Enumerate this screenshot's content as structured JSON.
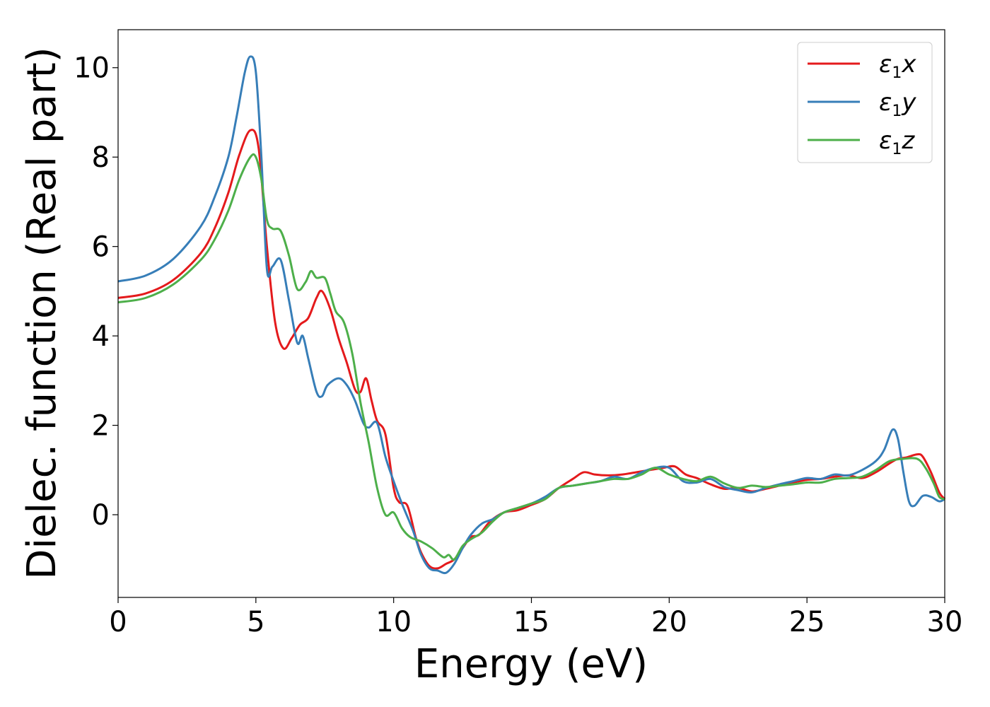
{
  "chart_data": {
    "type": "line",
    "xlabel": "Energy (eV)",
    "ylabel": "Dielec. function (Real part)",
    "xlim": [
      0,
      30
    ],
    "ylim": [
      -1.85,
      10.85
    ],
    "xticks": [
      0,
      5,
      10,
      15,
      20,
      25,
      30
    ],
    "yticks": [
      0,
      2,
      4,
      6,
      8,
      10
    ],
    "grid": false,
    "legend_position": "top-right",
    "series": [
      {
        "name": "ε1x",
        "legend_symbol": "ε",
        "legend_subscript": "1",
        "legend_suffix": "x",
        "color": "#e41a1c",
        "x": [
          0,
          1,
          2,
          3,
          3.5,
          4,
          4.4,
          4.8,
          5.1,
          5.4,
          5.7,
          6.0,
          6.3,
          6.6,
          6.9,
          7.2,
          7.4,
          7.7,
          8.0,
          8.3,
          8.6,
          8.8,
          9.0,
          9.2,
          9.4,
          9.7,
          10.0,
          10.2,
          10.5,
          10.8,
          11.0,
          11.3,
          11.6,
          11.9,
          12.2,
          12.5,
          12.8,
          13.1,
          13.5,
          14.0,
          14.5,
          15.0,
          15.5,
          16.0,
          16.5,
          16.9,
          17.3,
          17.8,
          18.3,
          18.8,
          19.3,
          19.8,
          20.2,
          20.6,
          21.0,
          21.5,
          22.0,
          22.5,
          23.0,
          23.5,
          24.0,
          24.5,
          25.0,
          25.5,
          26.0,
          26.5,
          27.0,
          27.5,
          28.0,
          28.3,
          28.6,
          29.0,
          29.2,
          29.5,
          29.8,
          30.0
        ],
        "y": [
          4.85,
          4.95,
          5.25,
          5.85,
          6.4,
          7.2,
          8.05,
          8.6,
          8.2,
          6.0,
          4.3,
          3.72,
          3.95,
          4.25,
          4.4,
          4.85,
          5.0,
          4.6,
          3.95,
          3.4,
          2.8,
          2.75,
          3.05,
          2.55,
          2.1,
          1.8,
          0.6,
          0.28,
          0.2,
          -0.5,
          -0.85,
          -1.15,
          -1.2,
          -1.1,
          -1.0,
          -0.75,
          -0.5,
          -0.45,
          -0.15,
          0.05,
          0.1,
          0.22,
          0.35,
          0.6,
          0.8,
          0.95,
          0.9,
          0.88,
          0.9,
          0.95,
          1.0,
          1.05,
          1.08,
          0.9,
          0.82,
          0.68,
          0.58,
          0.6,
          0.52,
          0.58,
          0.65,
          0.72,
          0.78,
          0.8,
          0.85,
          0.88,
          0.82,
          0.95,
          1.15,
          1.25,
          1.28,
          1.35,
          1.3,
          0.95,
          0.5,
          0.35
        ]
      },
      {
        "name": "ε1y",
        "legend_symbol": "ε",
        "legend_subscript": "1",
        "legend_suffix": "y",
        "color": "#377eb8",
        "x": [
          0,
          1,
          2,
          3,
          3.5,
          4,
          4.3,
          4.6,
          4.8,
          5.0,
          5.2,
          5.4,
          5.6,
          5.9,
          6.2,
          6.5,
          6.7,
          6.9,
          7.2,
          7.4,
          7.6,
          8.0,
          8.3,
          8.6,
          8.9,
          9.1,
          9.4,
          9.7,
          10.0,
          10.3,
          10.7,
          11.0,
          11.3,
          11.6,
          11.9,
          12.2,
          12.5,
          12.8,
          13.2,
          13.6,
          14.0,
          14.5,
          15.0,
          15.5,
          16.0,
          16.5,
          17.0,
          17.5,
          18.0,
          18.5,
          19.0,
          19.5,
          20.0,
          20.5,
          21.0,
          21.5,
          22.0,
          22.5,
          23.0,
          23.5,
          24.0,
          24.5,
          25.0,
          25.5,
          26.0,
          26.5,
          27.0,
          27.5,
          27.8,
          28.1,
          28.3,
          28.5,
          28.7,
          28.9,
          29.2,
          29.5,
          29.8,
          30.0
        ],
        "y": [
          5.22,
          5.35,
          5.72,
          6.45,
          7.1,
          8.0,
          8.9,
          9.9,
          10.25,
          9.9,
          8.0,
          5.5,
          5.55,
          5.7,
          4.8,
          3.85,
          4.0,
          3.5,
          2.75,
          2.65,
          2.9,
          3.05,
          2.9,
          2.55,
          2.05,
          1.95,
          2.05,
          1.3,
          0.75,
          0.25,
          -0.35,
          -0.9,
          -1.2,
          -1.25,
          -1.3,
          -1.1,
          -0.75,
          -0.45,
          -0.2,
          -0.1,
          0.05,
          0.15,
          0.25,
          0.4,
          0.6,
          0.65,
          0.7,
          0.75,
          0.85,
          0.8,
          0.95,
          1.05,
          1.05,
          0.75,
          0.72,
          0.8,
          0.62,
          0.55,
          0.5,
          0.6,
          0.68,
          0.75,
          0.82,
          0.8,
          0.9,
          0.88,
          1.0,
          1.2,
          1.45,
          1.9,
          1.7,
          0.95,
          0.3,
          0.2,
          0.42,
          0.4,
          0.3,
          0.35
        ]
      },
      {
        "name": "ε1z",
        "legend_symbol": "ε",
        "legend_subscript": "1",
        "legend_suffix": "z",
        "color": "#4daf4a",
        "x": [
          0,
          1,
          2,
          3,
          3.5,
          4,
          4.4,
          4.8,
          5.0,
          5.2,
          5.4,
          5.6,
          5.9,
          6.2,
          6.5,
          6.8,
          7.0,
          7.2,
          7.5,
          7.7,
          7.9,
          8.2,
          8.5,
          8.8,
          9.1,
          9.4,
          9.7,
          10.0,
          10.3,
          10.6,
          11.0,
          11.4,
          11.8,
          12.0,
          12.2,
          12.5,
          12.8,
          13.2,
          13.6,
          14.0,
          14.5,
          15.0,
          15.5,
          16.0,
          16.5,
          17.0,
          17.5,
          18.0,
          18.5,
          19.0,
          19.5,
          20.0,
          20.5,
          21.0,
          21.5,
          22.0,
          22.5,
          23.0,
          23.5,
          24.0,
          24.5,
          25.0,
          25.5,
          26.0,
          26.5,
          27.0,
          27.5,
          28.0,
          28.5,
          29.0,
          29.3,
          29.6,
          29.8,
          30.0
        ],
        "y": [
          4.75,
          4.85,
          5.15,
          5.7,
          6.15,
          6.8,
          7.5,
          8.0,
          8.0,
          7.5,
          6.6,
          6.4,
          6.35,
          5.8,
          5.05,
          5.2,
          5.45,
          5.3,
          5.3,
          4.95,
          4.55,
          4.3,
          3.6,
          2.5,
          1.6,
          0.6,
          0.0,
          0.05,
          -0.3,
          -0.5,
          -0.6,
          -0.75,
          -0.95,
          -0.9,
          -1.0,
          -0.7,
          -0.55,
          -0.4,
          -0.15,
          0.05,
          0.15,
          0.25,
          0.35,
          0.6,
          0.65,
          0.7,
          0.75,
          0.8,
          0.8,
          0.9,
          1.05,
          0.9,
          0.8,
          0.75,
          0.85,
          0.7,
          0.6,
          0.65,
          0.62,
          0.65,
          0.68,
          0.72,
          0.72,
          0.8,
          0.82,
          0.85,
          1.0,
          1.2,
          1.25,
          1.25,
          1.05,
          0.7,
          0.4,
          0.35
        ]
      }
    ]
  }
}
